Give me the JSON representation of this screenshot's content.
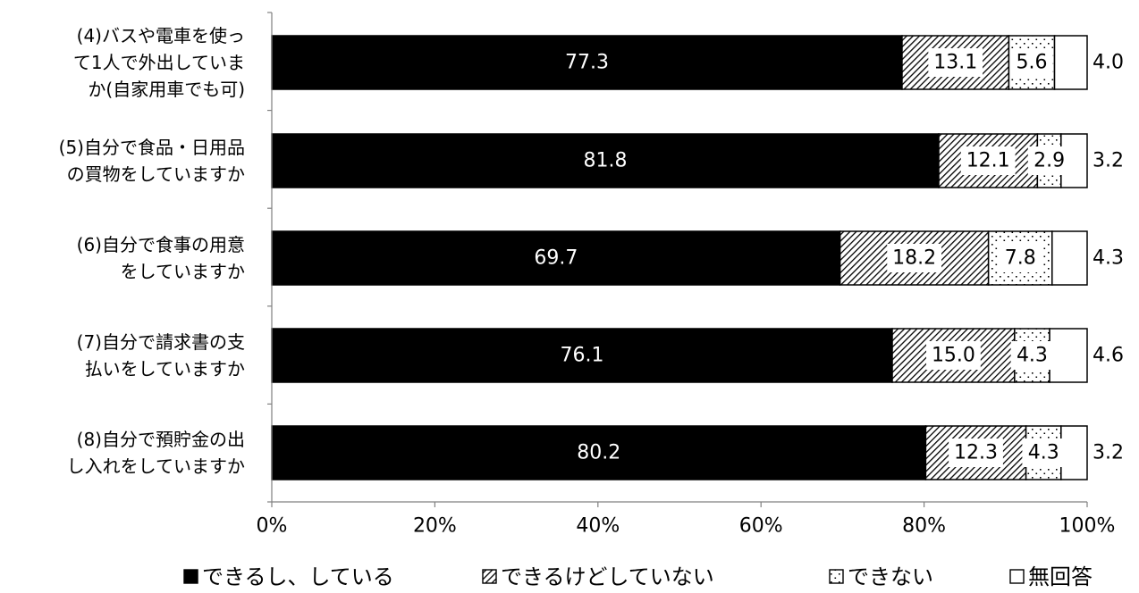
{
  "chart_data": {
    "type": "bar",
    "orientation": "horizontal",
    "stacked": true,
    "percent_stacked": true,
    "categories": [
      [
        "(4)バスや電車を使っ",
        "て1人で外出していま",
        "か(自家用車でも可)"
      ],
      [
        "(5)自分で食品・日用品",
        "の買物をしていますか"
      ],
      [
        "(6)自分で食事の用意",
        "をしていますか"
      ],
      [
        "(7)自分で請求書の支",
        "払いをしていますか"
      ],
      [
        "(8)自分で預貯金の出",
        "し入れをしていますか"
      ]
    ],
    "series": [
      {
        "name": "できるし、している",
        "values": [
          77.3,
          81.8,
          69.7,
          76.1,
          80.2
        ],
        "labels": [
          "77.3",
          "81.8",
          "69.7",
          "76.1",
          "80.2"
        ],
        "fill": "solid"
      },
      {
        "name": "できるけどしていない",
        "values": [
          13.1,
          12.1,
          18.2,
          15.0,
          12.3
        ],
        "labels": [
          "13.1",
          "12.1",
          "18.2",
          "15.0",
          "12.3"
        ],
        "fill": "hatch"
      },
      {
        "name": "できない",
        "values": [
          5.6,
          2.9,
          7.8,
          4.3,
          4.3
        ],
        "labels": [
          "5.6",
          "2.9",
          "7.8",
          "4.3",
          "4.3"
        ],
        "fill": "dots"
      },
      {
        "name": "無回答",
        "values": [
          4.0,
          3.2,
          4.3,
          4.6,
          3.2
        ],
        "labels": [
          "4.0",
          "3.2",
          "4.3",
          "4.6",
          "3.2"
        ],
        "fill": "empty"
      }
    ],
    "x_ticks": [
      "0%",
      "20%",
      "40%",
      "60%",
      "80%",
      "100%"
    ],
    "xlim": [
      0,
      100
    ],
    "grid": false,
    "legend_position": "bottom",
    "colors": {
      "bar": "#000000",
      "outline": "#000000",
      "background": "#ffffff",
      "label_light": "#ffffff",
      "label_dark": "#000000"
    }
  }
}
